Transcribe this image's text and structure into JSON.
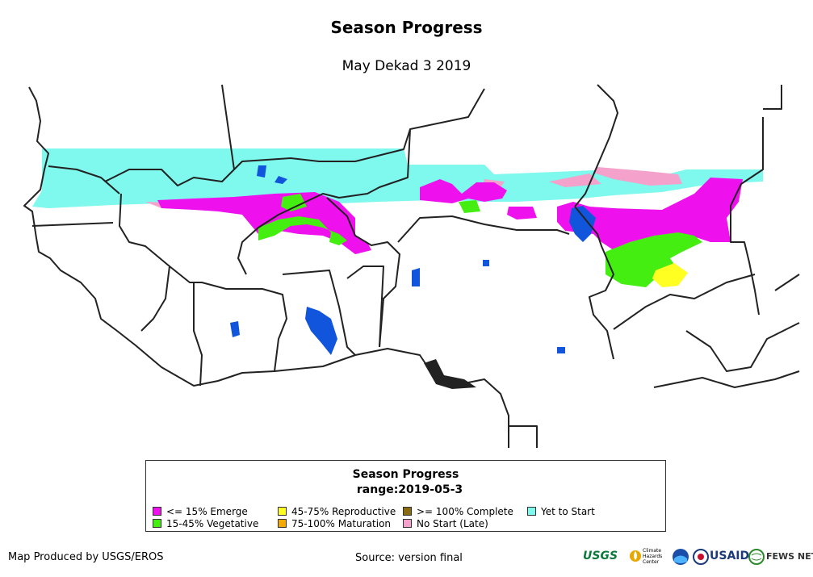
{
  "title": "Season Progress",
  "subtitle": "May Dekad 3 2019",
  "legend": {
    "title": "Season Progress",
    "range": "range:2019-05-3",
    "items": [
      {
        "label": "<= 15% Emerge",
        "color": "#ee11ee"
      },
      {
        "label": "15-45% Vegetative",
        "color": "#44ee11"
      },
      {
        "label": "45-75% Reproductive",
        "color": "#ffff22"
      },
      {
        "label": "75-100% Maturation",
        "color": "#f2aa00"
      },
      {
        "label": ">= 100% Complete",
        "color": "#8a6a11"
      },
      {
        "label": "No Start (Late)",
        "color": "#f4a2cc"
      },
      {
        "label": "Yet to Start",
        "color": "#7ff8ee"
      }
    ]
  },
  "water_color": "#1155dd",
  "footer": {
    "produced_by": "Map Produced by USGS/EROS",
    "source": "Source: version final"
  },
  "logos": {
    "usgs": "USGS",
    "chc": "Climate Hazards Center",
    "usaid": "USAID",
    "fewsnet": "FEWS NET"
  }
}
